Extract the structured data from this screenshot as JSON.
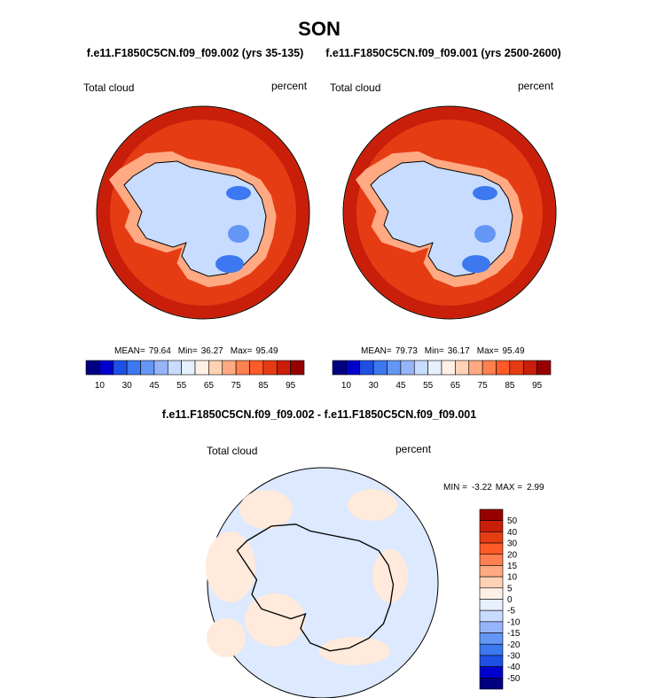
{
  "title": "SON",
  "panels": [
    {
      "subtitle": "f.e11.F1850C5CN.f09_f09.002 (yrs 35-135)",
      "left_label": "Total cloud",
      "right_label": "percent",
      "stats": [
        {
          "label": "MEAN=",
          "value": 79.64
        },
        {
          "label": "Min=",
          "value": 36.27
        },
        {
          "label": "Max=",
          "value": 95.49
        }
      ],
      "colorbar_labels": [
        10,
        30,
        45,
        55,
        65,
        75,
        85,
        95
      ]
    },
    {
      "subtitle": "f.e11.F1850C5CN.f09_f09.001 (yrs 2500-2600)",
      "left_label": "Total cloud",
      "right_label": "percent",
      "stats": [
        {
          "label": "MEAN=",
          "value": 79.73
        },
        {
          "label": "Min=",
          "value": 36.17
        },
        {
          "label": "Max=",
          "value": 95.49
        }
      ],
      "colorbar_labels": [
        10,
        30,
        45,
        55,
        65,
        75,
        85,
        95
      ]
    }
  ],
  "difference": {
    "title": "f.e11.F1850C5CN.f09_f09.002 - f.e11.F1850C5CN.f09_f09.001",
    "left_label": "Total cloud",
    "right_label": "percent",
    "stats": [
      {
        "label": "MIN =",
        "value": -3.22
      },
      {
        "label": "MAX =",
        "value": 2.99
      }
    ],
    "colorbar_labels": [
      50,
      40,
      30,
      20,
      15,
      10,
      5,
      0,
      -5,
      -10,
      -15,
      -20,
      -30,
      -40,
      -50
    ]
  }
}
